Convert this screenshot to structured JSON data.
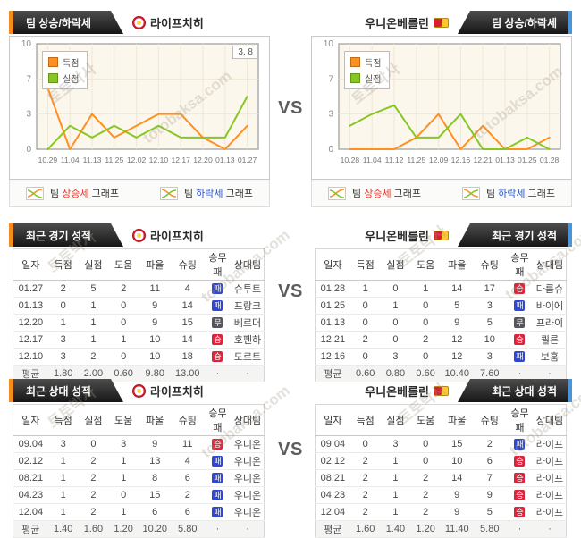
{
  "page": {
    "vs": "VS"
  },
  "watermarks": [
    "토토박사",
    "totobaksa.com"
  ],
  "teams": {
    "left": {
      "name": "라이프치히"
    },
    "right": {
      "name": "우니온베를린"
    }
  },
  "headers": {
    "trend": "팀 상승/하락세",
    "recent": "최근 경기 성적",
    "h2h": "최근 상대 성적"
  },
  "trend_legend": {
    "rise": {
      "pre": "팀 ",
      "mid": "상승세",
      "post": " 그래프"
    },
    "fall": {
      "pre": "팀 ",
      "mid": "하락세",
      "post": " 그래프"
    }
  },
  "colors": {
    "accent_orange": "#f68b1f",
    "accent_blue": "#4a94dc",
    "win": "#e0233c",
    "lose": "#2e47d4",
    "draw": "#55555d",
    "line_score": "#ff8f20",
    "line_concede": "#85c822"
  },
  "chart_data": [
    {
      "type": "line",
      "team": "라이프치히",
      "x": [
        "10.29",
        "11.04",
        "11.13",
        "11.25",
        "12.02",
        "12.10",
        "12.17",
        "12.20",
        "01.13",
        "01.27"
      ],
      "yticks": [
        0,
        3,
        7,
        10
      ],
      "ylim": [
        0,
        10
      ],
      "grid": true,
      "legend_position": "top-left",
      "annotation": "3, 8",
      "series": [
        {
          "name": "득점",
          "color": "#ff8f20",
          "values": [
            6,
            0,
            3,
            1,
            2,
            3,
            3,
            1,
            0,
            2
          ]
        },
        {
          "name": "실점",
          "color": "#85c822",
          "values": [
            0,
            2,
            1,
            2,
            1,
            2,
            1,
            1,
            1,
            5
          ]
        }
      ]
    },
    {
      "type": "line",
      "team": "우니온베를린",
      "x": [
        "10.28",
        "11.04",
        "11.12",
        "11.25",
        "12.09",
        "12.16",
        "12.21",
        "01.13",
        "01.25",
        "01.28"
      ],
      "yticks": [
        0,
        3,
        7,
        10
      ],
      "ylim": [
        0,
        10
      ],
      "grid": true,
      "legend_position": "top-left",
      "annotation": "",
      "series": [
        {
          "name": "득점",
          "color": "#ff8f20",
          "values": [
            0,
            0,
            0,
            1,
            3,
            0,
            2,
            0,
            0,
            1
          ]
        },
        {
          "name": "실점",
          "color": "#85c822",
          "values": [
            2,
            3,
            4,
            1,
            1,
            3,
            0,
            0,
            1,
            0
          ]
        }
      ]
    }
  ],
  "table_columns": [
    "일자",
    "득점",
    "실점",
    "도움",
    "파울",
    "슈팅",
    "승무패",
    "상대팀"
  ],
  "tables": {
    "recent_left": {
      "rows": [
        [
          "01.27",
          "2",
          "5",
          "2",
          "11",
          "4",
          "패",
          "슈투트"
        ],
        [
          "01.13",
          "0",
          "1",
          "0",
          "9",
          "14",
          "패",
          "프랑크"
        ],
        [
          "12.20",
          "1",
          "1",
          "0",
          "9",
          "15",
          "무",
          "베르더"
        ],
        [
          "12.17",
          "3",
          "1",
          "1",
          "10",
          "14",
          "승",
          "호펜하"
        ],
        [
          "12.10",
          "3",
          "2",
          "0",
          "10",
          "18",
          "승",
          "도르트"
        ],
        [
          "평균",
          "1.80",
          "2.00",
          "0.60",
          "9.80",
          "13.00",
          "·",
          "·"
        ]
      ]
    },
    "recent_right": {
      "rows": [
        [
          "01.28",
          "1",
          "0",
          "1",
          "14",
          "17",
          "승",
          "다름슈"
        ],
        [
          "01.25",
          "0",
          "1",
          "0",
          "5",
          "3",
          "패",
          "바이에"
        ],
        [
          "01.13",
          "0",
          "0",
          "0",
          "9",
          "5",
          "무",
          "프라이"
        ],
        [
          "12.21",
          "2",
          "0",
          "2",
          "12",
          "10",
          "승",
          "쾰른"
        ],
        [
          "12.16",
          "0",
          "3",
          "0",
          "12",
          "3",
          "패",
          "보훔"
        ],
        [
          "평균",
          "0.60",
          "0.80",
          "0.60",
          "10.40",
          "7.60",
          "·",
          "·"
        ]
      ]
    },
    "h2h_left": {
      "rows": [
        [
          "09.04",
          "3",
          "0",
          "3",
          "9",
          "11",
          "승",
          "우니온"
        ],
        [
          "02.12",
          "1",
          "2",
          "1",
          "13",
          "4",
          "패",
          "우니온"
        ],
        [
          "08.21",
          "1",
          "2",
          "1",
          "8",
          "6",
          "패",
          "우니온"
        ],
        [
          "04.23",
          "1",
          "2",
          "0",
          "15",
          "2",
          "패",
          "우니온"
        ],
        [
          "12.04",
          "1",
          "2",
          "1",
          "6",
          "6",
          "패",
          "우니온"
        ],
        [
          "평균",
          "1.40",
          "1.60",
          "1.20",
          "10.20",
          "5.80",
          "·",
          "·"
        ]
      ]
    },
    "h2h_right": {
      "rows": [
        [
          "09.04",
          "0",
          "3",
          "0",
          "15",
          "2",
          "패",
          "라이프"
        ],
        [
          "02.12",
          "2",
          "1",
          "0",
          "10",
          "6",
          "승",
          "라이프"
        ],
        [
          "08.21",
          "2",
          "1",
          "2",
          "14",
          "7",
          "승",
          "라이프"
        ],
        [
          "04.23",
          "2",
          "1",
          "2",
          "9",
          "9",
          "승",
          "라이프"
        ],
        [
          "12.04",
          "2",
          "1",
          "2",
          "9",
          "5",
          "승",
          "라이프"
        ],
        [
          "평균",
          "1.60",
          "1.40",
          "1.20",
          "11.40",
          "5.80",
          "·",
          "·"
        ]
      ]
    }
  }
}
